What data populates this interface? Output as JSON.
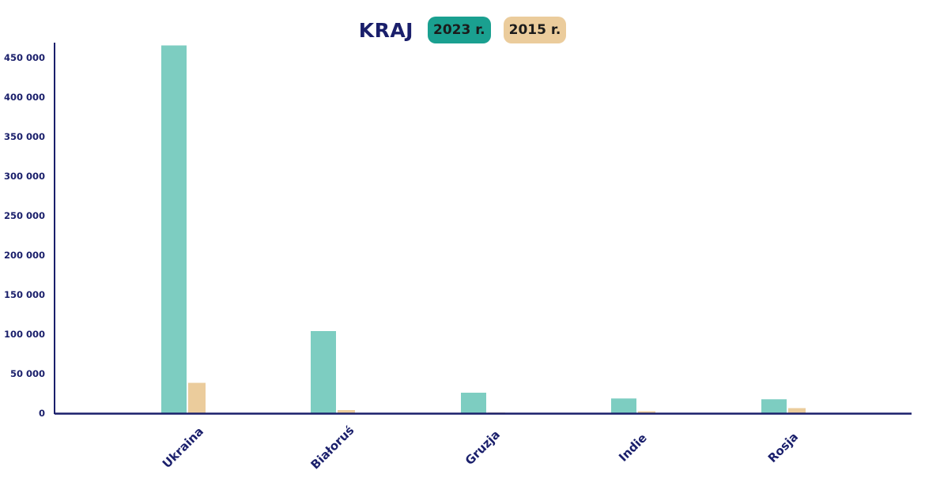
{
  "header": {
    "title": "KRAJ",
    "legend": [
      {
        "label": "2023 r.",
        "color": "#1aa090"
      },
      {
        "label": "2015 r.",
        "color": "#ebcc9c"
      }
    ]
  },
  "colors": {
    "bar_2023": "#7dcdc1",
    "bar_2015": "#ebcc9c",
    "axis": "#1a1f6b"
  },
  "chart_data": {
    "type": "bar",
    "title": "KRAJ",
    "categories": [
      "Ukraina",
      "Białoruś",
      "Gruzja",
      "Indie",
      "Rosja"
    ],
    "series": [
      {
        "name": "2023 r.",
        "values": [
          465500,
          104000,
          26000,
          18700,
          17700
        ]
      },
      {
        "name": "2015 r.",
        "values": [
          38500,
          4000,
          1000,
          2500,
          6500
        ]
      }
    ],
    "ylim": [
      0,
      470000
    ],
    "yticks": [
      0,
      50000,
      100000,
      150000,
      200000,
      250000,
      300000,
      350000,
      400000,
      450000
    ],
    "ytick_labels": [
      "0",
      "50 000",
      "100 000",
      "150 000",
      "200 000",
      "250 000",
      "300 000",
      "350 000",
      "400 000",
      "450 000"
    ],
    "xlabel": "",
    "ylabel": "",
    "grid": false,
    "legend": "top-center"
  }
}
